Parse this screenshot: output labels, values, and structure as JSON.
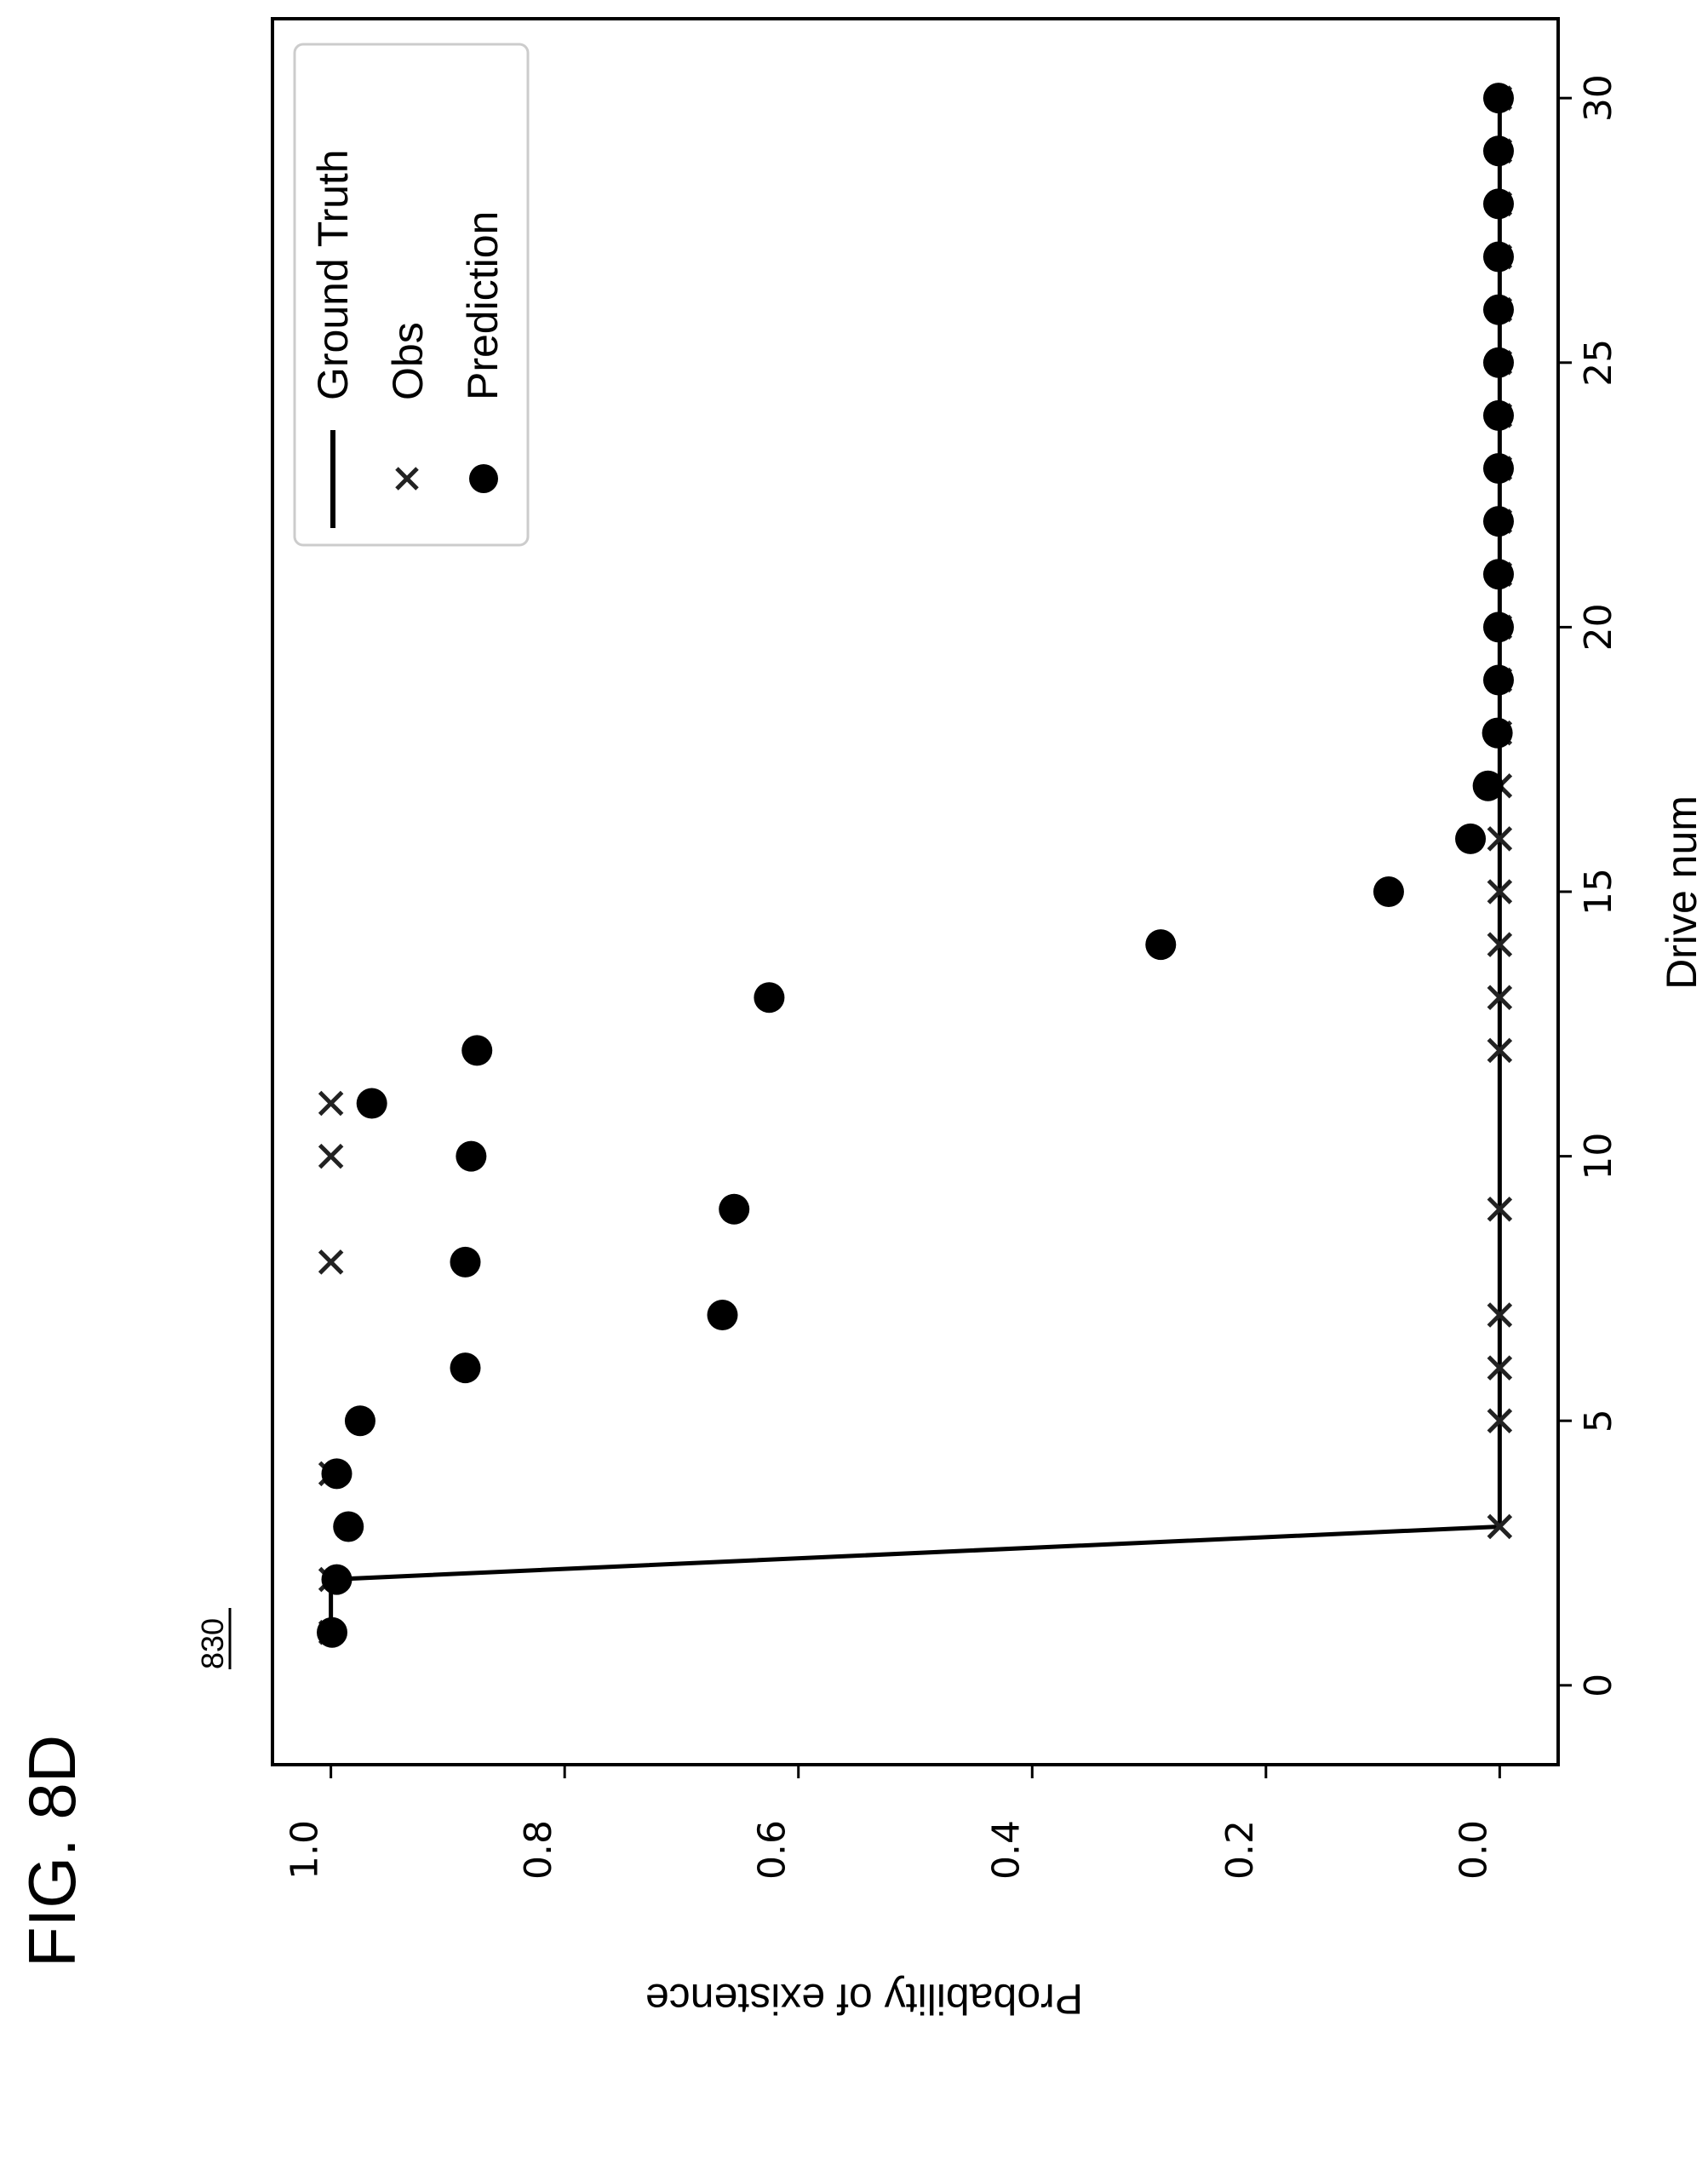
{
  "figure": {
    "label": "FIG. 8D",
    "reference_number": "830"
  },
  "chart_data": {
    "type": "scatter",
    "orientation": "rotated 90° counter-clockwise on the page",
    "xlabel": "Drive num",
    "ylabel": "Probability of existence",
    "xlim": [
      -1.5,
      31.5
    ],
    "ylim": [
      -0.05,
      1.05
    ],
    "xticks": [
      0,
      5,
      10,
      15,
      20,
      25,
      30
    ],
    "yticks": [
      0.0,
      0.2,
      0.4,
      0.6,
      0.8,
      1.0
    ],
    "xtick_labels": [
      "0",
      "5",
      "10",
      "15",
      "20",
      "25",
      "30"
    ],
    "ytick_labels": [
      "0.0",
      "0.2",
      "0.4",
      "0.6",
      "0.8",
      "1.0"
    ],
    "legend": {
      "placement": "upper-left of the plot as seen on the page",
      "entries": [
        "Ground Truth",
        "Obs",
        "Prediction"
      ]
    },
    "series": [
      {
        "name": "Ground Truth",
        "style": "line",
        "color": "#000000",
        "x": [
          1,
          2,
          3,
          4,
          5,
          6,
          7,
          8,
          9,
          10,
          11,
          12,
          13,
          14,
          15,
          16,
          17,
          18,
          19,
          20,
          21,
          22,
          23,
          24,
          25,
          26,
          27,
          28,
          29,
          30
        ],
        "y": [
          1,
          1,
          0,
          0,
          0,
          0,
          0,
          0,
          0,
          0,
          0,
          0,
          0,
          0,
          0,
          0,
          0,
          0,
          0,
          0,
          0,
          0,
          0,
          0,
          0,
          0,
          0,
          0,
          0,
          0
        ]
      },
      {
        "name": "Obs",
        "style": "x-marker",
        "color": "#222222",
        "x": [
          1,
          2,
          3,
          4,
          5,
          6,
          7,
          8,
          9,
          10,
          11,
          12,
          13,
          14,
          15,
          16,
          17,
          18,
          19,
          20,
          21,
          22,
          23,
          24,
          25,
          26,
          27,
          28,
          29,
          30
        ],
        "y": [
          1,
          1,
          0,
          1,
          0,
          0,
          0,
          1,
          0,
          1,
          1,
          0,
          0,
          0,
          0,
          0,
          0,
          0,
          0,
          0,
          0,
          0,
          0,
          0,
          0,
          0,
          0,
          0,
          0,
          0
        ]
      },
      {
        "name": "Prediction",
        "style": "circle-marker",
        "color": "#000000",
        "x": [
          1,
          2,
          3,
          4,
          5,
          6,
          7,
          8,
          9,
          10,
          11,
          12,
          13,
          14,
          15,
          16,
          17,
          18,
          19,
          20,
          21,
          22,
          23,
          24,
          25,
          26,
          27,
          28,
          29,
          30
        ],
        "y": [
          0.999,
          0.995,
          0.985,
          0.995,
          0.975,
          0.885,
          0.665,
          0.885,
          0.655,
          0.88,
          0.965,
          0.875,
          0.625,
          0.29,
          0.095,
          0.025,
          0.01,
          0.002,
          0.001,
          0.001,
          0.001,
          0.001,
          0.001,
          0.001,
          0.001,
          0.001,
          0.001,
          0.001,
          0.001,
          0.001
        ]
      }
    ]
  }
}
